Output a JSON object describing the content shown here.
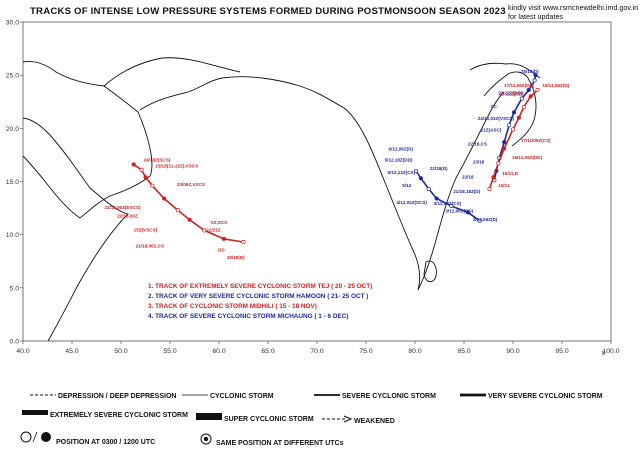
{
  "title": "TRACKS OF INTENSE LOW PRESSURE SYSTEMS FORMED DURING POSTMONSOON SEASON 2023",
  "note": {
    "line1": "kindly visit  www.rsmcnewdelhi.imd.gov.in",
    "line2": "for latest updates"
  },
  "axes": {
    "x_ticks": [
      "40.0",
      "45.0",
      "50.0",
      "55.0",
      "60.0",
      "65.0",
      "70.0",
      "75.0",
      "80.0",
      "85.0",
      "90.0",
      "95.0",
      "100.0"
    ],
    "y_ticks": [
      "30.0",
      "25.0",
      "20.0",
      "15.0",
      "10.0",
      "5.0",
      "0.0"
    ],
    "x_suffix": "E"
  },
  "colors": {
    "tej": "#cc2222",
    "hamoon": "#1f2a9a",
    "midhili": "#cc2222",
    "michaung": "#1f2a9a",
    "coast": "#111111"
  },
  "track_legend": [
    {
      "text": "1. TRACK OF EXTREMELY SEVERE CYCLONIC STORM TEJ ( 20 - 25 OCT)",
      "color": "#cc2222"
    },
    {
      "text": "2. TRACK OF VERY SEVERE CYCLONIC STORM HAMOON  ( 21- 25 OCT )",
      "color": "#1f2a9a"
    },
    {
      "text": "3. TRACK OF CYCLONIC STORM MIDHILI ( 15 - 18 NOV)",
      "color": "#cc2222"
    },
    {
      "text": "4. TRACK OF  SEVERE CYCLONIC STORM MICHAUNG  ( 1 - 6 DEC)",
      "color": "#1f2a9a"
    }
  ],
  "symbol_legend": {
    "depression": "DEPRESSION / DEEP DEPRESSION",
    "cs": "CYCLONIC STORM",
    "scs": "SEVERE CYCLONIC STORM",
    "vscs": "VERY SEVERE CYCLONIC STORM",
    "escs": "EXTREMELY SEVERE CYCLONIC STORM",
    "sucs": "SUPER CYCLONIC STORM",
    "weakened": "WEAKENED",
    "position": "POSITION AT 0300 / 1200 UTC",
    "same_position": "SAME POSITION AT DIFFERENT UTCs"
  },
  "tracks": [
    {
      "name": "TEJ",
      "color": "#cc2222",
      "points": [
        [
          62.5,
          9.3
        ],
        [
          60.5,
          9.6
        ],
        [
          58.5,
          10.4
        ],
        [
          57,
          11.4
        ],
        [
          55.8,
          12.3
        ],
        [
          54.4,
          13.4
        ],
        [
          53.2,
          14.6
        ],
        [
          52.5,
          15.4
        ],
        [
          52.1,
          16.1
        ],
        [
          51.3,
          16.6
        ]
      ],
      "labels": [
        {
          "lon": 52.3,
          "lat": 16.9,
          "text": "24/18Z(SCS)"
        },
        {
          "lon": 53.5,
          "lat": 16.3,
          "text": "23/18(21-22Z),VSCS"
        },
        {
          "lon": 55.7,
          "lat": 14.6,
          "text": "23/06Z,VSCS"
        },
        {
          "lon": 48.3,
          "lat": 12.4,
          "text": "22/18,00Z(ESCS)"
        },
        {
          "lon": 49.6,
          "lat": 11.6,
          "text": "22/18,00Z"
        },
        {
          "lon": 51.3,
          "lat": 10.3,
          "text": "15Z(VSCS)"
        },
        {
          "lon": 59.2,
          "lat": 11.0,
          "text": "0Z,SCS"
        },
        {
          "lon": 58.7,
          "lat": 10.3,
          "text": "21/21Z"
        },
        {
          "lon": 51.5,
          "lat": 8.8,
          "text": "21/18,06Z,CS"
        },
        {
          "lon": 59.9,
          "lat": 8.4,
          "text": "DD"
        },
        {
          "lon": 60.8,
          "lat": 7.7,
          "text": "20/18(D)"
        }
      ]
    },
    {
      "name": "HAMOON",
      "color": "#1f2a9a",
      "points": [
        [
          88.1,
          15.1
        ],
        [
          88.3,
          16.0
        ],
        [
          88.6,
          17.2
        ],
        [
          89.1,
          18.7
        ],
        [
          89.6,
          20.3
        ],
        [
          90.1,
          21.5
        ],
        [
          90.9,
          22.8
        ],
        [
          91.6,
          23.6
        ],
        [
          92.2,
          24.5
        ],
        [
          92.3,
          25.0
        ]
      ],
      "labels": [
        {
          "lon": 90.8,
          "lat": 25.2,
          "text": "25/18(D)"
        },
        {
          "lon": 88.5,
          "lat": 23.2,
          "text": "21-22Z(DD)"
        },
        {
          "lon": 86.4,
          "lat": 20.8,
          "text": "24/10,03Z(VSCS)"
        },
        {
          "lon": 87.7,
          "lat": 21.9,
          "text": "SC"
        },
        {
          "lon": 86.7,
          "lat": 19.7,
          "text": "21Z(ASC)"
        },
        {
          "lon": 85.4,
          "lat": 18.4,
          "text": "22/18,CS"
        },
        {
          "lon": 85.9,
          "lat": 16.7,
          "text": "23/18"
        },
        {
          "lon": 84.8,
          "lat": 15.3,
          "text": "22/18"
        },
        {
          "lon": 83.9,
          "lat": 13.9,
          "text": "21/18,18Z(D)"
        }
      ]
    },
    {
      "name": "MIDHILI",
      "color": "#cc2222",
      "points": [
        [
          87.6,
          14.3
        ],
        [
          88.0,
          15.4
        ],
        [
          88.5,
          16.7
        ],
        [
          89.1,
          18.1
        ],
        [
          90.0,
          19.9
        ],
        [
          90.6,
          21.0
        ],
        [
          91.1,
          22.0
        ],
        [
          91.8,
          23.0
        ],
        [
          92.5,
          23.6
        ]
      ],
      "labels": [
        {
          "lon": 93.0,
          "lat": 23.9,
          "text": "18/11,06Z(D)"
        },
        {
          "lon": 89.1,
          "lat": 23.9,
          "text": "17/11,06Z(DD)"
        },
        {
          "lon": 88.6,
          "lat": 23.1,
          "text": "21-22Z(DD)"
        },
        {
          "lon": 90.8,
          "lat": 18.7,
          "text": "17/11/06Z(CS)"
        },
        {
          "lon": 89.9,
          "lat": 17.1,
          "text": "16/11,06Z(DD)"
        },
        {
          "lon": 88.9,
          "lat": 15.6,
          "text": "15/11,D"
        },
        {
          "lon": 88.5,
          "lat": 14.5,
          "text": "15/11"
        }
      ]
    },
    {
      "name": "MICHAUNG",
      "color": "#1f2a9a",
      "points": [
        [
          86.6,
          11.3
        ],
        [
          85.4,
          12.1
        ],
        [
          83.7,
          12.7
        ],
        [
          82.2,
          13.4
        ],
        [
          81.4,
          14.3
        ],
        [
          80.6,
          15.3
        ],
        [
          80.1,
          16.0
        ]
      ],
      "labels": [
        {
          "lon": 77.3,
          "lat": 17.9,
          "text": "6/12,06Z(D)"
        },
        {
          "lon": 76.9,
          "lat": 16.9,
          "text": "5/12,18Z(DD)"
        },
        {
          "lon": 81.5,
          "lat": 16.1,
          "text": "22/18(D)"
        },
        {
          "lon": 77.2,
          "lat": 15.7,
          "text": "5/12,12Z(CS)"
        },
        {
          "lon": 78.7,
          "lat": 14.5,
          "text": "5/12"
        },
        {
          "lon": 78.1,
          "lat": 12.9,
          "text": "4/12,03Z(SCS)"
        },
        {
          "lon": 81.9,
          "lat": 12.8,
          "text": "3/12,03Z(CS)"
        },
        {
          "lon": 83.1,
          "lat": 12.1,
          "text": "3/12,00Z(DD)"
        },
        {
          "lon": 85.9,
          "lat": 11.3,
          "text": "2/12,06Z(D)"
        }
      ]
    }
  ]
}
